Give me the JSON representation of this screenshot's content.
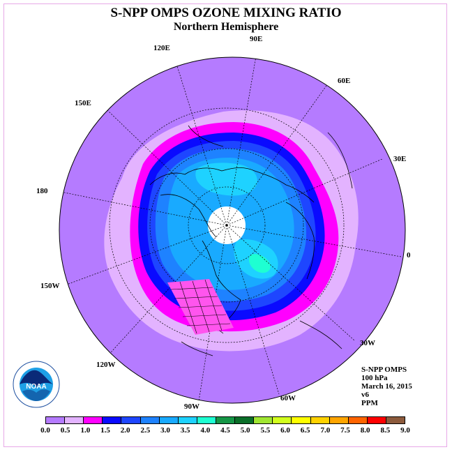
{
  "header": {
    "title": "S-NPP OMPS OZONE MIXING RATIO",
    "subtitle": "Northern Hemisphere"
  },
  "longitude_labels": [
    {
      "text": "90E",
      "id": "lon-90e"
    },
    {
      "text": "120E",
      "id": "lon-120e"
    },
    {
      "text": "60E",
      "id": "lon-60e"
    },
    {
      "text": "150E",
      "id": "lon-150e"
    },
    {
      "text": "30E",
      "id": "lon-30e"
    },
    {
      "text": "180",
      "id": "lon-180"
    },
    {
      "text": "0",
      "id": "lon-0"
    },
    {
      "text": "150W",
      "id": "lon-150w"
    },
    {
      "text": "30W",
      "id": "lon-30w"
    },
    {
      "text": "120W",
      "id": "lon-120w"
    },
    {
      "text": "60W",
      "id": "lon-60w"
    },
    {
      "text": "90W",
      "id": "lon-90w"
    }
  ],
  "info": {
    "instrument": "S-NPP OMPS",
    "level": "100 hPa",
    "date": "March 16, 2015",
    "version": "v6",
    "units": "PPM"
  },
  "legend": {
    "ticks": [
      "0.0",
      "0.5",
      "1.0",
      "1.5",
      "2.0",
      "2.5",
      "3.0",
      "3.5",
      "4.0",
      "4.5",
      "5.0",
      "5.5",
      "6.0",
      "6.5",
      "7.0",
      "7.5",
      "8.0",
      "8.5",
      "9.0"
    ],
    "colors": [
      "#b57bff",
      "#e3b3ff",
      "#ff00ff",
      "#0a0aff",
      "#1e46ff",
      "#1e82ff",
      "#19aaff",
      "#1ed2ff",
      "#1effd2",
      "#159646",
      "#0a6e28",
      "#a0e632",
      "#d2ff1e",
      "#ffff00",
      "#ffd200",
      "#ffa500",
      "#ff6400",
      "#ff0000",
      "#8c5a3c"
    ]
  },
  "logo": {
    "name": "NOAA",
    "ring_text": "NATIONAL OCEANIC AND ATMOSPHERIC ADMINISTRATION · U.S. DEPARTMENT OF COMMERCE"
  }
}
